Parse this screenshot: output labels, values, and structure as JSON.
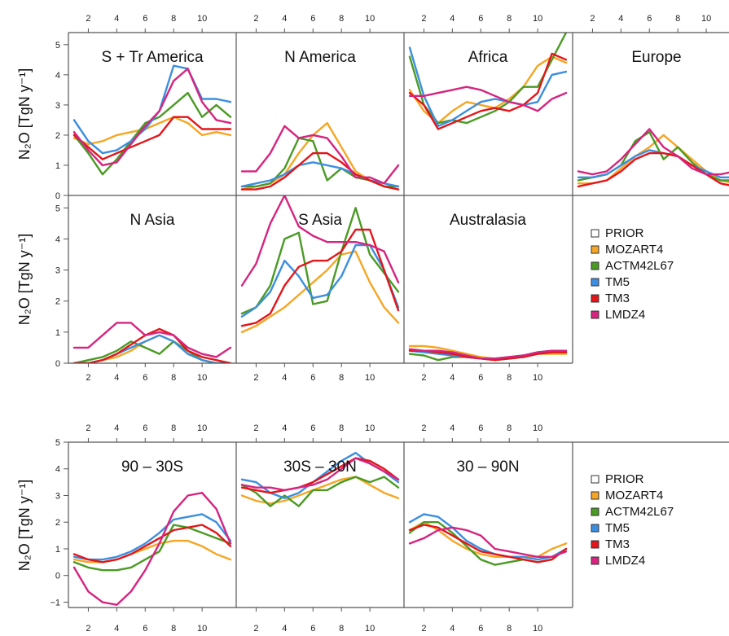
{
  "y_axis_label": "N₂O [TgN y⁻¹]",
  "x_ticks": [
    "2",
    "4",
    "6",
    "8",
    "10"
  ],
  "upper_y_ticks": [
    "0",
    "1",
    "2",
    "3",
    "4",
    "5"
  ],
  "lower_y_ticks": [
    "−1",
    "0",
    "1",
    "2",
    "3",
    "4",
    "5"
  ],
  "legend": [
    {
      "label": "PRIOR",
      "color": "#ffffff"
    },
    {
      "label": "MOZART4",
      "color": "#f5a623"
    },
    {
      "label": "ACTM42L67",
      "color": "#4a9a24"
    },
    {
      "label": "TM5",
      "color": "#3b8ee0"
    },
    {
      "label": "TM3",
      "color": "#e3161b"
    },
    {
      "label": "LMDZ4",
      "color": "#d6247f"
    }
  ],
  "chart_data": [
    {
      "type": "line",
      "title": "S + Tr America",
      "x": [
        1,
        2,
        3,
        4,
        5,
        6,
        7,
        8,
        9,
        10,
        11,
        12
      ],
      "ylim": [
        0,
        5.4
      ],
      "series": [
        {
          "name": "MOZART4",
          "values": [
            1.9,
            1.7,
            1.8,
            2.0,
            2.1,
            2.2,
            2.4,
            2.6,
            2.4,
            2.0,
            2.1,
            2.0
          ]
        },
        {
          "name": "ACTM42L67",
          "values": [
            2.0,
            1.4,
            0.7,
            1.2,
            1.8,
            2.4,
            2.6,
            3.0,
            3.4,
            2.6,
            3.0,
            2.6
          ]
        },
        {
          "name": "TM5",
          "values": [
            2.5,
            1.8,
            1.4,
            1.5,
            1.8,
            2.2,
            2.8,
            4.3,
            4.2,
            3.2,
            3.2,
            3.1
          ]
        },
        {
          "name": "TM3",
          "values": [
            2.0,
            1.6,
            1.2,
            1.4,
            1.6,
            1.8,
            2.0,
            2.6,
            2.6,
            2.2,
            2.2,
            2.2
          ]
        },
        {
          "name": "LMDZ4",
          "values": [
            2.1,
            1.5,
            1.0,
            1.1,
            1.7,
            2.3,
            2.8,
            3.8,
            4.2,
            3.1,
            2.5,
            2.4
          ]
        }
      ]
    },
    {
      "type": "line",
      "title": "N America",
      "x": [
        1,
        2,
        3,
        4,
        5,
        6,
        7,
        8,
        9,
        10,
        11,
        12
      ],
      "ylim": [
        0,
        5.4
      ],
      "series": [
        {
          "name": "MOZART4",
          "values": [
            0.2,
            0.3,
            0.4,
            0.7,
            1.4,
            2.0,
            2.4,
            1.6,
            0.8,
            0.5,
            0.3,
            0.2
          ]
        },
        {
          "name": "ACTM42L67",
          "values": [
            0.3,
            0.3,
            0.4,
            0.9,
            1.9,
            1.8,
            0.5,
            0.9,
            0.6,
            0.5,
            0.3,
            0.3
          ]
        },
        {
          "name": "TM5",
          "values": [
            0.3,
            0.4,
            0.5,
            0.7,
            1.0,
            1.1,
            1.0,
            0.9,
            0.7,
            0.5,
            0.4,
            0.3
          ]
        },
        {
          "name": "TM3",
          "values": [
            0.2,
            0.2,
            0.3,
            0.6,
            1.0,
            1.4,
            1.4,
            1.1,
            0.7,
            0.5,
            0.3,
            0.2
          ]
        },
        {
          "name": "LMDZ4",
          "values": [
            0.8,
            0.8,
            1.4,
            2.3,
            1.9,
            2.0,
            1.9,
            1.3,
            0.6,
            0.6,
            0.4,
            1.0
          ]
        }
      ]
    },
    {
      "type": "line",
      "title": "Africa",
      "x": [
        1,
        2,
        3,
        4,
        5,
        6,
        7,
        8,
        9,
        10,
        11,
        12
      ],
      "ylim": [
        0,
        5.4
      ],
      "series": [
        {
          "name": "MOZART4",
          "values": [
            3.5,
            2.8,
            2.4,
            2.8,
            3.1,
            3.0,
            2.9,
            3.2,
            3.6,
            4.3,
            4.6,
            4.4
          ]
        },
        {
          "name": "ACTM42L67",
          "values": [
            4.6,
            3.0,
            2.4,
            2.5,
            2.4,
            2.6,
            2.8,
            3.1,
            3.6,
            3.6,
            4.5,
            5.4
          ]
        },
        {
          "name": "TM5",
          "values": [
            4.9,
            3.3,
            2.3,
            2.5,
            2.8,
            3.1,
            3.2,
            3.1,
            3.0,
            3.1,
            4.0,
            4.1
          ]
        },
        {
          "name": "TM3",
          "values": [
            3.4,
            3.0,
            2.2,
            2.4,
            2.6,
            2.8,
            2.9,
            2.8,
            3.0,
            3.4,
            4.7,
            4.5
          ]
        },
        {
          "name": "LMDZ4",
          "values": [
            3.3,
            3.3,
            3.4,
            3.5,
            3.6,
            3.5,
            3.3,
            3.1,
            3.0,
            2.8,
            3.2,
            3.4
          ]
        }
      ]
    },
    {
      "type": "line",
      "title": "Europe",
      "x": [
        1,
        2,
        3,
        4,
        5,
        6,
        7,
        8,
        9,
        10,
        11,
        12
      ],
      "ylim": [
        0,
        5.4
      ],
      "series": [
        {
          "name": "MOZART4",
          "values": [
            0.4,
            0.4,
            0.5,
            0.9,
            1.3,
            1.6,
            2.0,
            1.6,
            1.2,
            0.8,
            0.5,
            0.4
          ]
        },
        {
          "name": "ACTM42L67",
          "values": [
            0.5,
            0.6,
            0.7,
            1.0,
            1.8,
            2.1,
            1.2,
            1.6,
            1.1,
            0.7,
            0.5,
            0.5
          ]
        },
        {
          "name": "TM5",
          "values": [
            0.6,
            0.6,
            0.7,
            1.0,
            1.3,
            1.5,
            1.4,
            1.3,
            1.0,
            0.8,
            0.6,
            0.6
          ]
        },
        {
          "name": "TM3",
          "values": [
            0.3,
            0.4,
            0.5,
            0.8,
            1.2,
            1.4,
            1.4,
            1.3,
            1.0,
            0.7,
            0.4,
            0.3
          ]
        },
        {
          "name": "LMDZ4",
          "values": [
            0.8,
            0.7,
            0.8,
            1.2,
            1.7,
            2.2,
            1.6,
            1.3,
            0.9,
            0.7,
            0.7,
            0.8
          ]
        }
      ]
    },
    {
      "type": "line",
      "title": "N Asia",
      "x": [
        1,
        2,
        3,
        4,
        5,
        6,
        7,
        8,
        9,
        10,
        11,
        12
      ],
      "ylim": [
        0,
        5.4
      ],
      "series": [
        {
          "name": "MOZART4",
          "values": [
            0.0,
            0.0,
            0.1,
            0.2,
            0.4,
            0.7,
            0.9,
            0.7,
            0.3,
            0.1,
            0.0,
            0.0
          ]
        },
        {
          "name": "ACTM42L67",
          "values": [
            0.0,
            0.1,
            0.2,
            0.4,
            0.7,
            0.5,
            0.3,
            0.7,
            0.4,
            0.1,
            0.0,
            0.0
          ]
        },
        {
          "name": "TM5",
          "values": [
            0.0,
            0.0,
            0.1,
            0.3,
            0.5,
            0.7,
            0.9,
            0.7,
            0.3,
            0.1,
            0.0,
            0.0
          ]
        },
        {
          "name": "TM3",
          "values": [
            0.0,
            0.0,
            0.1,
            0.3,
            0.6,
            0.9,
            1.1,
            0.9,
            0.4,
            0.2,
            0.1,
            0.0
          ]
        },
        {
          "name": "LMDZ4",
          "values": [
            0.5,
            0.5,
            0.9,
            1.3,
            1.3,
            0.9,
            1.0,
            0.9,
            0.5,
            0.3,
            0.2,
            0.5
          ]
        }
      ]
    },
    {
      "type": "line",
      "title": "S Asia",
      "x": [
        1,
        2,
        3,
        4,
        5,
        6,
        7,
        8,
        9,
        10,
        11,
        12
      ],
      "ylim": [
        0,
        5.4
      ],
      "series": [
        {
          "name": "MOZART4",
          "values": [
            1.0,
            1.2,
            1.5,
            1.8,
            2.2,
            2.6,
            3.0,
            3.5,
            3.6,
            2.6,
            1.8,
            1.3
          ]
        },
        {
          "name": "ACTM42L67",
          "values": [
            1.6,
            1.8,
            2.5,
            4.0,
            4.2,
            1.9,
            2.0,
            3.6,
            5.0,
            3.5,
            2.9,
            2.3
          ]
        },
        {
          "name": "TM5",
          "values": [
            1.5,
            1.8,
            2.3,
            3.3,
            2.8,
            2.1,
            2.2,
            2.8,
            3.8,
            3.8,
            3.0,
            1.8
          ]
        },
        {
          "name": "TM3",
          "values": [
            1.2,
            1.3,
            1.6,
            2.5,
            3.1,
            3.3,
            3.3,
            3.6,
            4.3,
            4.3,
            3.0,
            1.7
          ]
        },
        {
          "name": "LMDZ4",
          "values": [
            2.5,
            3.2,
            4.5,
            5.4,
            4.4,
            4.1,
            3.9,
            3.9,
            3.9,
            3.8,
            3.6,
            2.6
          ]
        }
      ]
    },
    {
      "type": "line",
      "title": "Australasia",
      "x": [
        1,
        2,
        3,
        4,
        5,
        6,
        7,
        8,
        9,
        10,
        11,
        12
      ],
      "ylim": [
        0,
        5.4
      ],
      "series": [
        {
          "name": "MOZART4",
          "values": [
            0.55,
            0.55,
            0.5,
            0.4,
            0.3,
            0.2,
            0.15,
            0.2,
            0.25,
            0.3,
            0.3,
            0.3
          ]
        },
        {
          "name": "ACTM42L67",
          "values": [
            0.3,
            0.25,
            0.1,
            0.2,
            0.2,
            0.15,
            0.1,
            0.15,
            0.2,
            0.3,
            0.35,
            0.35
          ]
        },
        {
          "name": "TM5",
          "values": [
            0.4,
            0.35,
            0.3,
            0.25,
            0.2,
            0.15,
            0.15,
            0.2,
            0.25,
            0.35,
            0.4,
            0.4
          ]
        },
        {
          "name": "TM3",
          "values": [
            0.4,
            0.4,
            0.35,
            0.3,
            0.2,
            0.15,
            0.1,
            0.15,
            0.2,
            0.3,
            0.35,
            0.35
          ]
        },
        {
          "name": "LMDZ4",
          "values": [
            0.45,
            0.4,
            0.4,
            0.35,
            0.25,
            0.15,
            0.15,
            0.2,
            0.25,
            0.35,
            0.4,
            0.4
          ]
        }
      ]
    },
    {
      "type": "line",
      "title": "90 – 30S",
      "x": [
        1,
        2,
        3,
        4,
        5,
        6,
        7,
        8,
        9,
        10,
        11,
        12
      ],
      "ylim": [
        -1.2,
        5.0
      ],
      "series": [
        {
          "name": "MOZART4",
          "values": [
            0.6,
            0.5,
            0.5,
            0.6,
            0.8,
            1.0,
            1.2,
            1.3,
            1.3,
            1.1,
            0.8,
            0.6
          ]
        },
        {
          "name": "ACTM42L67",
          "values": [
            0.5,
            0.3,
            0.2,
            0.2,
            0.3,
            0.6,
            0.9,
            1.9,
            1.8,
            1.6,
            1.4,
            1.2
          ]
        },
        {
          "name": "TM5",
          "values": [
            0.7,
            0.6,
            0.6,
            0.7,
            0.9,
            1.2,
            1.6,
            2.1,
            2.2,
            2.3,
            2.0,
            1.3
          ]
        },
        {
          "name": "TM3",
          "values": [
            0.8,
            0.6,
            0.5,
            0.6,
            0.8,
            1.1,
            1.4,
            1.7,
            1.8,
            1.9,
            1.6,
            1.1
          ]
        },
        {
          "name": "LMDZ4",
          "values": [
            0.3,
            -0.6,
            -1.0,
            -1.1,
            -0.6,
            0.2,
            1.2,
            2.4,
            3.0,
            3.1,
            2.5,
            1.2
          ]
        }
      ]
    },
    {
      "type": "line",
      "title": "30S – 30N",
      "x": [
        1,
        2,
        3,
        4,
        5,
        6,
        7,
        8,
        9,
        10,
        11,
        12
      ],
      "ylim": [
        -1.2,
        5.0
      ],
      "series": [
        {
          "name": "MOZART4",
          "values": [
            3.0,
            2.8,
            2.7,
            2.8,
            3.0,
            3.2,
            3.4,
            3.6,
            3.7,
            3.4,
            3.1,
            2.9
          ]
        },
        {
          "name": "ACTM42L67",
          "values": [
            3.4,
            3.1,
            2.6,
            3.0,
            2.6,
            3.2,
            3.2,
            3.5,
            3.7,
            3.5,
            3.7,
            3.3
          ]
        },
        {
          "name": "TM5",
          "values": [
            3.6,
            3.5,
            3.1,
            2.9,
            3.1,
            3.5,
            3.9,
            4.3,
            4.6,
            4.2,
            3.9,
            3.5
          ]
        },
        {
          "name": "TM3",
          "values": [
            3.3,
            3.2,
            3.1,
            3.2,
            3.3,
            3.5,
            3.8,
            4.1,
            4.4,
            4.3,
            4.0,
            3.6
          ]
        },
        {
          "name": "LMDZ4",
          "values": [
            3.4,
            3.3,
            3.3,
            3.2,
            3.3,
            3.4,
            3.6,
            4.0,
            4.4,
            4.2,
            3.9,
            3.6
          ]
        }
      ]
    },
    {
      "type": "line",
      "title": "30 – 90N",
      "x": [
        1,
        2,
        3,
        4,
        5,
        6,
        7,
        8,
        9,
        10,
        11,
        12
      ],
      "ylim": [
        -1.2,
        5.0
      ],
      "series": [
        {
          "name": "MOZART4",
          "values": [
            1.7,
            2.0,
            1.7,
            1.3,
            1.0,
            0.8,
            0.7,
            0.7,
            0.7,
            0.7,
            1.0,
            1.2
          ]
        },
        {
          "name": "ACTM42L67",
          "values": [
            1.6,
            2.0,
            2.0,
            1.6,
            1.1,
            0.6,
            0.4,
            0.5,
            0.6,
            0.5,
            0.6,
            1.0
          ]
        },
        {
          "name": "TM5",
          "values": [
            2.0,
            2.3,
            2.2,
            1.8,
            1.3,
            1.0,
            0.8,
            0.7,
            0.7,
            0.6,
            0.7,
            1.0
          ]
        },
        {
          "name": "TM3",
          "values": [
            1.7,
            1.9,
            1.8,
            1.5,
            1.2,
            0.9,
            0.8,
            0.7,
            0.6,
            0.5,
            0.6,
            1.0
          ]
        },
        {
          "name": "LMDZ4",
          "values": [
            1.2,
            1.4,
            1.7,
            1.8,
            1.7,
            1.5,
            1.0,
            0.9,
            0.8,
            0.7,
            0.7,
            0.9
          ]
        }
      ]
    }
  ]
}
